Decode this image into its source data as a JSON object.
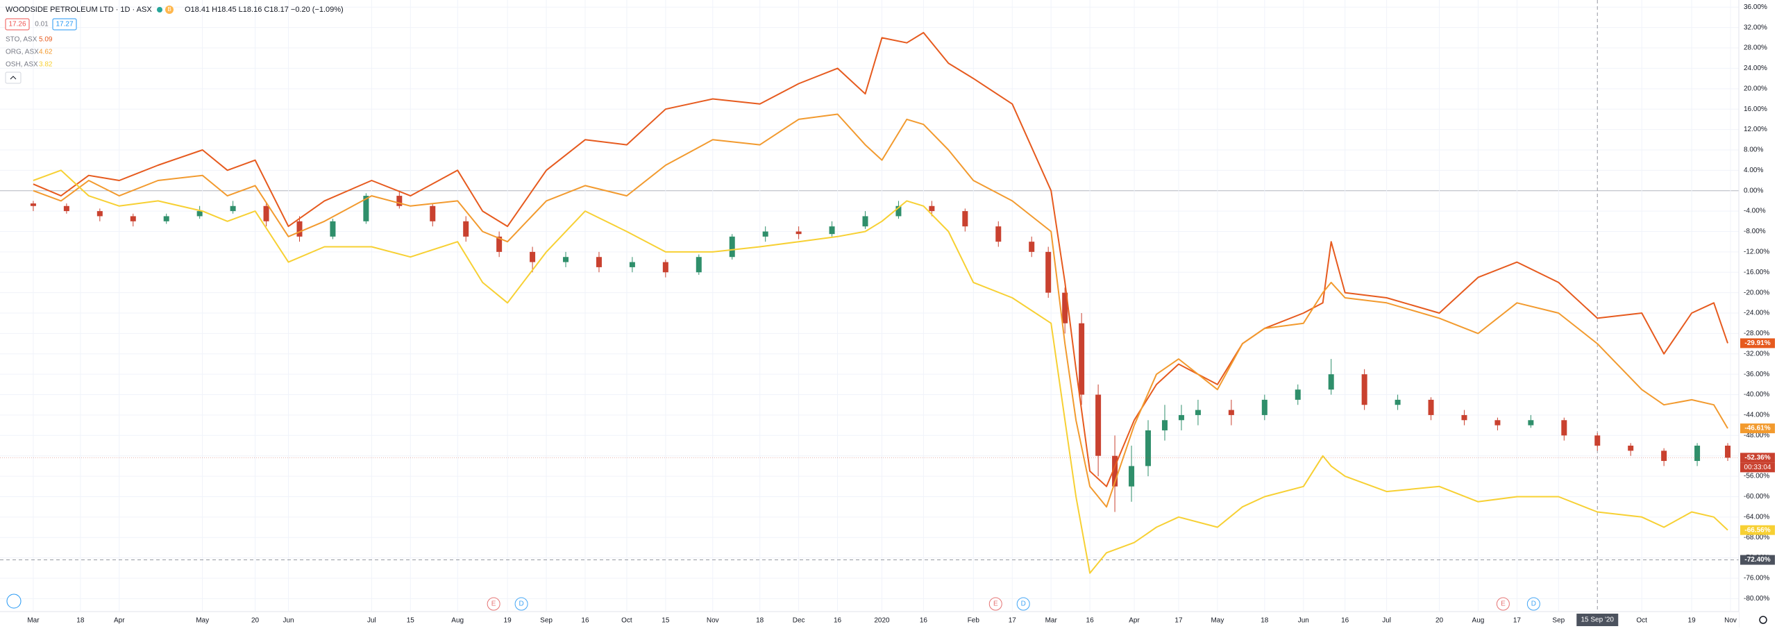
{
  "chart_data": {
    "type": "line",
    "title": "WOODSIDE PETROLEUM LTD · 1D · ASX",
    "badge": "B",
    "ohlc": "O18.41 H18.45 L18.16 C18.17 −0.20 (−1.09%)",
    "bid": "17.26",
    "spread": "0.01",
    "ask": "17.27",
    "countdown": "00:33:04",
    "grid": true,
    "x": [
      0,
      10,
      20,
      31,
      45,
      61,
      70,
      80,
      92,
      105,
      122,
      136,
      153,
      162,
      171,
      185,
      199,
      214,
      228,
      245,
      262,
      276,
      290,
      300,
      306,
      315,
      321,
      330,
      339,
      353,
      367,
      372,
      376,
      381,
      387,
      397,
      405,
      413,
      427,
      436,
      444,
      458,
      465,
      468,
      473,
      488,
      507,
      521,
      535,
      550,
      564,
      580,
      588,
      598,
      606,
      611
    ],
    "xlim": [
      -12,
      615
    ],
    "xticks": [
      {
        "value": 0,
        "label": "Mar"
      },
      {
        "value": 17,
        "label": "18"
      },
      {
        "value": 31,
        "label": "Apr"
      },
      {
        "value": 61,
        "label": "May"
      },
      {
        "value": 80,
        "label": "20"
      },
      {
        "value": 92,
        "label": "Jun"
      },
      {
        "value": 122,
        "label": "Jul"
      },
      {
        "value": 136,
        "label": "15"
      },
      {
        "value": 153,
        "label": "Aug"
      },
      {
        "value": 171,
        "label": "19"
      },
      {
        "value": 185,
        "label": "Sep"
      },
      {
        "value": 199,
        "label": "16"
      },
      {
        "value": 214,
        "label": "Oct"
      },
      {
        "value": 228,
        "label": "15"
      },
      {
        "value": 245,
        "label": "Nov"
      },
      {
        "value": 262,
        "label": "18"
      },
      {
        "value": 276,
        "label": "Dec"
      },
      {
        "value": 290,
        "label": "16"
      },
      {
        "value": 306,
        "label": "2020"
      },
      {
        "value": 321,
        "label": "16"
      },
      {
        "value": 339,
        "label": "Feb"
      },
      {
        "value": 353,
        "label": "17"
      },
      {
        "value": 367,
        "label": "Mar"
      },
      {
        "value": 381,
        "label": "16"
      },
      {
        "value": 397,
        "label": "Apr"
      },
      {
        "value": 413,
        "label": "17"
      },
      {
        "value": 427,
        "label": "May"
      },
      {
        "value": 444,
        "label": "18"
      },
      {
        "value": 458,
        "label": "Jun"
      },
      {
        "value": 473,
        "label": "16"
      },
      {
        "value": 488,
        "label": "Jul"
      },
      {
        "value": 507,
        "label": "20"
      },
      {
        "value": 521,
        "label": "Aug"
      },
      {
        "value": 535,
        "label": "17"
      },
      {
        "value": 550,
        "label": "Sep"
      },
      {
        "value": 580,
        "label": "Oct"
      },
      {
        "value": 598,
        "label": "19"
      },
      {
        "value": 612,
        "label": "Nov"
      }
    ],
    "ylim": [
      -82.4,
      37.4
    ],
    "yticks": [
      {
        "value": 36,
        "label": "36.00%"
      },
      {
        "value": 32,
        "label": "32.00%"
      },
      {
        "value": 28,
        "label": "28.00%"
      },
      {
        "value": 24,
        "label": "24.00%"
      },
      {
        "value": 20,
        "label": "20.00%"
      },
      {
        "value": 16,
        "label": "16.00%"
      },
      {
        "value": 12,
        "label": "12.00%"
      },
      {
        "value": 8,
        "label": "8.00%"
      },
      {
        "value": 4,
        "label": "4.00%"
      },
      {
        "value": 0,
        "label": "0.00%"
      },
      {
        "value": -4,
        "label": "-4.00%"
      },
      {
        "value": -8,
        "label": "-8.00%"
      },
      {
        "value": -12,
        "label": "-12.00%"
      },
      {
        "value": -16,
        "label": "-16.00%"
      },
      {
        "value": -20,
        "label": "-20.00%"
      },
      {
        "value": -24,
        "label": "-24.00%"
      },
      {
        "value": -28,
        "label": "-28.00%"
      },
      {
        "value": -32,
        "label": "-32.00%"
      },
      {
        "value": -36,
        "label": "-36.00%"
      },
      {
        "value": -40,
        "label": "-40.00%"
      },
      {
        "value": -44,
        "label": "-44.00%"
      },
      {
        "value": -48,
        "label": "-48.00%"
      },
      {
        "value": -52,
        "label": "-52.00%"
      },
      {
        "value": -56,
        "label": "-56.00%"
      },
      {
        "value": -60,
        "label": "-60.00%"
      },
      {
        "value": -64,
        "label": "-64.00%"
      },
      {
        "value": -68,
        "label": "-68.00%"
      },
      {
        "value": -72,
        "label": "-72.00%"
      },
      {
        "value": -76,
        "label": "-76.00%"
      },
      {
        "value": -80,
        "label": "-80.00%"
      }
    ],
    "series": [
      {
        "name": "STO, ASX",
        "price": "5.09",
        "color": "#e65a1e",
        "last_label": "-29.91%",
        "values": [
          1.3,
          -1,
          3,
          2,
          5,
          8,
          4,
          6,
          -7,
          -2,
          2,
          -1,
          4,
          -4,
          -7,
          4,
          10,
          9,
          16,
          18,
          17,
          21,
          24,
          19,
          30,
          29,
          31,
          25,
          22,
          17,
          0,
          -18,
          -35,
          -55,
          -58,
          -45,
          -38,
          -34,
          -38,
          -30,
          -27,
          -24,
          -22,
          -10,
          -20,
          -21,
          -24,
          -17,
          -14,
          -18,
          -25,
          -24,
          -32,
          -24,
          -22,
          -29.91
        ]
      },
      {
        "name": "ORG, ASX",
        "price": "4.62",
        "color": "#f29a2e",
        "last_label": "-46.61%",
        "values": [
          0,
          -2,
          2,
          -1,
          2,
          3,
          -1,
          1,
          -9,
          -6,
          -1,
          -3,
          -2,
          -8,
          -10,
          -2,
          1,
          -1,
          5,
          10,
          9,
          14,
          15,
          9,
          6,
          14,
          13,
          8,
          2,
          -2,
          -8,
          -30,
          -45,
          -58,
          -62,
          -46,
          -36,
          -33,
          -39,
          -30,
          -27,
          -26,
          -20,
          -18,
          -21,
          -22,
          -25,
          -28,
          -22,
          -24,
          -30,
          -39,
          -42,
          -41,
          -42,
          -46.61
        ]
      },
      {
        "name": "OSH, ASX",
        "price": "3.82",
        "color": "#f7d033",
        "last_label": "-66.56%",
        "values": [
          2,
          4,
          -1,
          -3,
          -2,
          -4,
          -6,
          -4,
          -14,
          -11,
          -11,
          -13,
          -10,
          -18,
          -22,
          -12,
          -4,
          -8,
          -12,
          -12,
          -11,
          -10,
          -9,
          -8,
          -6,
          -2,
          -3,
          -8,
          -18,
          -21,
          -26,
          -45,
          -60,
          -75,
          -71,
          -69,
          -66,
          -64,
          -66,
          -62,
          -60,
          -58,
          -52,
          -54,
          -56,
          -59,
          -58,
          -61,
          -60,
          -60,
          -63,
          -64,
          -66,
          -63,
          -64,
          -66.56
        ]
      }
    ],
    "candles": {
      "type": "candlestick",
      "up_color": "#2f8f6b",
      "down_color": "#c9412f",
      "last_label": "-52.36%",
      "x": [
        0,
        12,
        24,
        36,
        48,
        60,
        72,
        84,
        96,
        108,
        120,
        132,
        144,
        156,
        168,
        180,
        192,
        204,
        216,
        228,
        240,
        252,
        264,
        276,
        288,
        300,
        312,
        324,
        336,
        348,
        360,
        366,
        372,
        378,
        384,
        390,
        396,
        402,
        408,
        414,
        420,
        432,
        444,
        456,
        468,
        480,
        492,
        504,
        516,
        528,
        540,
        552,
        564,
        576,
        588,
        600,
        611
      ],
      "open": [
        -2.5,
        -3,
        -4,
        -5,
        -6,
        -5,
        -4,
        -3,
        -6,
        -9,
        -6,
        -1,
        -3,
        -6,
        -9,
        -12,
        -14,
        -13,
        -15,
        -14,
        -16,
        -13,
        -9,
        -8,
        -8.5,
        -7,
        -5,
        -3,
        -4,
        -7,
        -10,
        -12,
        -20,
        -26,
        -40,
        -52,
        -58,
        -54,
        -47,
        -45,
        -44,
        -43,
        -44,
        -41,
        -39,
        -36,
        -42,
        -41,
        -44,
        -45,
        -46,
        -45,
        -48,
        -50,
        -51,
        -53,
        -50
      ],
      "high": [
        -2,
        -2.5,
        -3.5,
        -4.5,
        -4.5,
        -3,
        -2,
        -2.5,
        -5,
        -5.5,
        -0.5,
        0,
        -2.5,
        -5,
        -8,
        -11,
        -12,
        -12,
        -13,
        -13.5,
        -12.5,
        -8.5,
        -7,
        -7,
        -6,
        -4,
        -2,
        -2,
        -3.5,
        -6,
        -9,
        -11,
        -19,
        -24,
        -38,
        -48,
        -50,
        -45,
        -42,
        -42,
        -41,
        -41,
        -40,
        -38,
        -33,
        -35,
        -40,
        -40.5,
        -43,
        -44.5,
        -44,
        -44.5,
        -47.5,
        -49.5,
        -50.5,
        -49.5,
        -49.5
      ],
      "low": [
        -4,
        -4.5,
        -6,
        -7,
        -6.5,
        -5.5,
        -4.5,
        -7,
        -10,
        -9.5,
        -6.5,
        -3.5,
        -7,
        -10,
        -13,
        -16,
        -15,
        -16,
        -16,
        -17,
        -16.5,
        -13.5,
        -10,
        -9.5,
        -9,
        -7.5,
        -5.5,
        -5,
        -8,
        -11,
        -13,
        -21,
        -28,
        -42,
        -56,
        -63,
        -61,
        -56,
        -49,
        -47,
        -46,
        -46,
        -45,
        -42,
        -40,
        -43,
        -43,
        -45,
        -46,
        -47,
        -46.5,
        -49,
        -51,
        -52,
        -54,
        -54,
        -53
      ],
      "close": [
        -3,
        -4,
        -5,
        -6,
        -5,
        -4,
        -3,
        -6,
        -9,
        -6,
        -1,
        -3,
        -6,
        -9,
        -12,
        -14,
        -13,
        -15,
        -14,
        -16,
        -13,
        -9,
        -8,
        -8.5,
        -7,
        -5,
        -3,
        -4,
        -7,
        -10,
        -12,
        -20,
        -26,
        -40,
        -52,
        -58,
        -54,
        -47,
        -45,
        -44,
        -43,
        -44,
        -41,
        -39,
        -36,
        -42,
        -41,
        -44,
        -45,
        -46,
        -45,
        -48,
        -50,
        -51,
        -53,
        -50,
        -52.36
      ]
    },
    "events": [
      {
        "x": 166,
        "label": "E"
      },
      {
        "x": 176,
        "label": "D"
      },
      {
        "x": 347,
        "label": "E"
      },
      {
        "x": 357,
        "label": "D"
      },
      {
        "x": 530,
        "label": "E"
      },
      {
        "x": 541,
        "label": "D"
      }
    ],
    "crosshair": {
      "x": 564,
      "x_label": "15 Sep '20",
      "y": -72.4,
      "y_label": "-72.40%"
    }
  }
}
